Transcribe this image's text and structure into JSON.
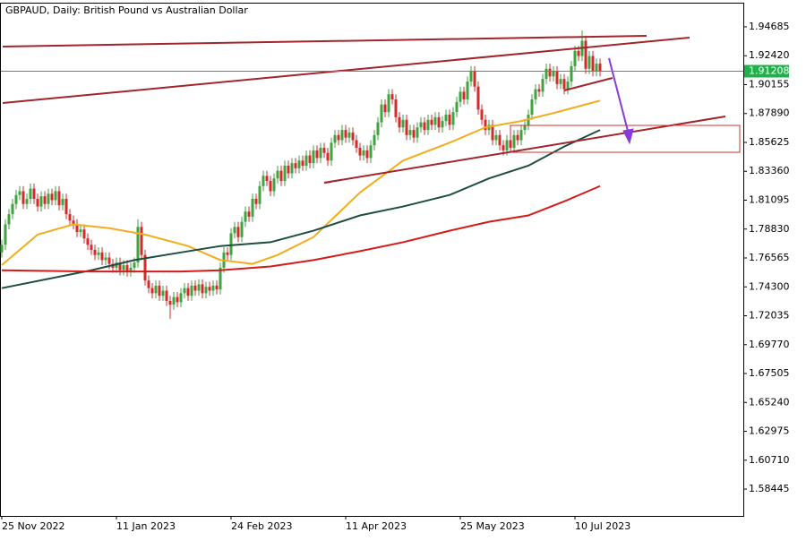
{
  "chart_data": {
    "type": "candlestick",
    "title": "GBPAUD, Daily:  British Pound vs Australian Dollar",
    "categories": [
      "25 Nov 2022",
      null,
      null,
      null,
      null,
      null,
      null,
      null,
      null,
      null,
      null,
      null,
      null,
      null,
      null,
      null,
      null,
      null,
      null,
      null,
      null,
      null,
      null,
      null,
      null,
      null,
      null,
      null,
      null,
      null,
      null,
      null,
      "11 Jan 2023",
      null,
      null,
      null,
      null,
      null,
      null,
      null,
      null,
      null,
      null,
      null,
      null,
      null,
      null,
      null,
      null,
      null,
      null,
      null,
      null,
      null,
      null,
      null,
      null,
      null,
      null,
      null,
      null,
      null,
      null,
      null,
      "24 Feb 2023",
      null,
      null,
      null,
      null,
      null,
      null,
      null,
      null,
      null,
      null,
      null,
      null,
      null,
      null,
      null,
      null,
      null,
      null,
      null,
      null,
      null,
      null,
      null,
      null,
      null,
      null,
      null,
      null,
      null,
      null,
      null,
      "11 Apr 2023",
      null,
      null,
      null,
      null,
      null,
      null,
      null,
      null,
      null,
      null,
      null,
      null,
      null,
      null,
      null,
      null,
      null,
      null,
      null,
      null,
      null,
      null,
      null,
      null,
      null,
      null,
      null,
      null,
      null,
      null,
      null,
      "25 May 2023",
      null,
      null,
      null,
      null,
      null,
      null,
      null,
      null,
      null,
      null,
      null,
      null,
      null,
      null,
      null,
      null,
      null,
      null,
      null,
      null,
      null,
      null,
      null,
      null,
      null,
      null,
      null,
      null,
      null,
      null,
      null,
      "10 Jul 2023",
      null,
      null,
      null,
      null,
      null,
      null,
      null
    ],
    "ohlc": [
      [
        1.77,
        1.78,
        1.766,
        1.776
      ],
      [
        1.776,
        1.796,
        1.772,
        1.792
      ],
      [
        1.792,
        1.804,
        1.788,
        1.8
      ],
      [
        1.8,
        1.812,
        1.796,
        1.808
      ],
      [
        1.808,
        1.819,
        1.804,
        1.815
      ],
      [
        1.815,
        1.822,
        1.811,
        1.818
      ],
      [
        1.818,
        1.822,
        1.804,
        1.808
      ],
      [
        1.808,
        1.816,
        1.804,
        1.812
      ],
      [
        1.812,
        1.824,
        1.808,
        1.82
      ],
      [
        1.82,
        1.824,
        1.808,
        1.812
      ],
      [
        1.812,
        1.816,
        1.802,
        1.806
      ],
      [
        1.806,
        1.818,
        1.802,
        1.814
      ],
      [
        1.814,
        1.818,
        1.804,
        1.808
      ],
      [
        1.808,
        1.82,
        1.804,
        1.816
      ],
      [
        1.816,
        1.82,
        1.807,
        1.811
      ],
      [
        1.811,
        1.822,
        1.807,
        1.818
      ],
      [
        1.818,
        1.822,
        1.803,
        1.807
      ],
      [
        1.807,
        1.816,
        1.803,
        1.812
      ],
      [
        1.812,
        1.816,
        1.796,
        1.8
      ],
      [
        1.8,
        1.804,
        1.791,
        1.795
      ],
      [
        1.795,
        1.799,
        1.788,
        1.792
      ],
      [
        1.792,
        1.796,
        1.782,
        1.786
      ],
      [
        1.786,
        1.792,
        1.782,
        1.788
      ],
      [
        1.788,
        1.792,
        1.777,
        1.781
      ],
      [
        1.781,
        1.785,
        1.772,
        1.776
      ],
      [
        1.776,
        1.78,
        1.768,
        1.772
      ],
      [
        1.772,
        1.776,
        1.764,
        1.768
      ],
      [
        1.768,
        1.774,
        1.764,
        1.77
      ],
      [
        1.77,
        1.774,
        1.76,
        1.764
      ],
      [
        1.764,
        1.77,
        1.76,
        1.766
      ],
      [
        1.766,
        1.77,
        1.757,
        1.761
      ],
      [
        1.761,
        1.765,
        1.754,
        1.758
      ],
      [
        1.758,
        1.766,
        1.754,
        1.762
      ],
      [
        1.762,
        1.766,
        1.752,
        1.756
      ],
      [
        1.756,
        1.764,
        1.752,
        1.76
      ],
      [
        1.76,
        1.764,
        1.751,
        1.755
      ],
      [
        1.755,
        1.762,
        1.751,
        1.758
      ],
      [
        1.758,
        1.766,
        1.754,
        1.762
      ],
      [
        1.762,
        1.796,
        1.758,
        1.79
      ],
      [
        1.79,
        1.794,
        1.764,
        1.768
      ],
      [
        1.768,
        1.772,
        1.744,
        1.748
      ],
      [
        1.748,
        1.752,
        1.738,
        1.742
      ],
      [
        1.742,
        1.746,
        1.734,
        1.738
      ],
      [
        1.738,
        1.748,
        1.734,
        1.744
      ],
      [
        1.744,
        1.748,
        1.732,
        1.736
      ],
      [
        1.736,
        1.744,
        1.732,
        1.74
      ],
      [
        1.74,
        1.744,
        1.728,
        1.732
      ],
      [
        1.732,
        1.736,
        1.718,
        1.729
      ],
      [
        1.729,
        1.739,
        1.725,
        1.735
      ],
      [
        1.735,
        1.739,
        1.727,
        1.731
      ],
      [
        1.731,
        1.742,
        1.727,
        1.738
      ],
      [
        1.738,
        1.746,
        1.734,
        1.742
      ],
      [
        1.742,
        1.746,
        1.732,
        1.736
      ],
      [
        1.736,
        1.748,
        1.732,
        1.744
      ],
      [
        1.744,
        1.748,
        1.736,
        1.74
      ],
      [
        1.74,
        1.749,
        1.736,
        1.745
      ],
      [
        1.745,
        1.749,
        1.734,
        1.738
      ],
      [
        1.738,
        1.747,
        1.734,
        1.743
      ],
      [
        1.743,
        1.747,
        1.736,
        1.74
      ],
      [
        1.74,
        1.748,
        1.736,
        1.744
      ],
      [
        1.744,
        1.748,
        1.737,
        1.741
      ],
      [
        1.741,
        1.762,
        1.737,
        1.758
      ],
      [
        1.758,
        1.774,
        1.754,
        1.77
      ],
      [
        1.77,
        1.774,
        1.764,
        1.768
      ],
      [
        1.768,
        1.789,
        1.764,
        1.785
      ],
      [
        1.785,
        1.794,
        1.781,
        1.79
      ],
      [
        1.79,
        1.794,
        1.778,
        1.782
      ],
      [
        1.782,
        1.798,
        1.778,
        1.794
      ],
      [
        1.794,
        1.806,
        1.79,
        1.802
      ],
      [
        1.802,
        1.806,
        1.794,
        1.798
      ],
      [
        1.798,
        1.816,
        1.794,
        1.812
      ],
      [
        1.812,
        1.816,
        1.804,
        1.808
      ],
      [
        1.808,
        1.826,
        1.804,
        1.822
      ],
      [
        1.822,
        1.834,
        1.818,
        1.83
      ],
      [
        1.83,
        1.834,
        1.822,
        1.826
      ],
      [
        1.826,
        1.83,
        1.814,
        1.818
      ],
      [
        1.818,
        1.832,
        1.814,
        1.828
      ],
      [
        1.828,
        1.838,
        1.824,
        1.834
      ],
      [
        1.834,
        1.838,
        1.822,
        1.826
      ],
      [
        1.826,
        1.842,
        1.822,
        1.838
      ],
      [
        1.838,
        1.842,
        1.828,
        1.832
      ],
      [
        1.832,
        1.844,
        1.828,
        1.84
      ],
      [
        1.84,
        1.844,
        1.832,
        1.836
      ],
      [
        1.836,
        1.846,
        1.832,
        1.842
      ],
      [
        1.842,
        1.846,
        1.834,
        1.838
      ],
      [
        1.838,
        1.85,
        1.834,
        1.846
      ],
      [
        1.846,
        1.85,
        1.836,
        1.84
      ],
      [
        1.84,
        1.854,
        1.836,
        1.85
      ],
      [
        1.85,
        1.854,
        1.84,
        1.844
      ],
      [
        1.844,
        1.856,
        1.84,
        1.852
      ],
      [
        1.852,
        1.856,
        1.844,
        1.848
      ],
      [
        1.848,
        1.852,
        1.838,
        1.842
      ],
      [
        1.842,
        1.86,
        1.838,
        1.856
      ],
      [
        1.856,
        1.866,
        1.852,
        1.862
      ],
      [
        1.862,
        1.866,
        1.854,
        1.858
      ],
      [
        1.858,
        1.87,
        1.854,
        1.866
      ],
      [
        1.866,
        1.87,
        1.856,
        1.86
      ],
      [
        1.86,
        1.868,
        1.856,
        1.864
      ],
      [
        1.864,
        1.868,
        1.854,
        1.858
      ],
      [
        1.858,
        1.862,
        1.848,
        1.852
      ],
      [
        1.852,
        1.856,
        1.842,
        1.846
      ],
      [
        1.846,
        1.854,
        1.842,
        1.85
      ],
      [
        1.85,
        1.854,
        1.84,
        1.844
      ],
      [
        1.844,
        1.858,
        1.84,
        1.854
      ],
      [
        1.854,
        1.866,
        1.85,
        1.862
      ],
      [
        1.862,
        1.876,
        1.858,
        1.872
      ],
      [
        1.872,
        1.89,
        1.868,
        1.886
      ],
      [
        1.886,
        1.89,
        1.876,
        1.88
      ],
      [
        1.88,
        1.898,
        1.876,
        1.894
      ],
      [
        1.894,
        1.898,
        1.886,
        1.89
      ],
      [
        1.89,
        1.894,
        1.872,
        1.876
      ],
      [
        1.876,
        1.88,
        1.864,
        1.868
      ],
      [
        1.868,
        1.878,
        1.864,
        1.874
      ],
      [
        1.874,
        1.878,
        1.858,
        1.862
      ],
      [
        1.862,
        1.87,
        1.858,
        1.866
      ],
      [
        1.866,
        1.87,
        1.856,
        1.86
      ],
      [
        1.86,
        1.872,
        1.856,
        1.868
      ],
      [
        1.868,
        1.876,
        1.864,
        1.872
      ],
      [
        1.872,
        1.876,
        1.862,
        1.866
      ],
      [
        1.866,
        1.878,
        1.862,
        1.874
      ],
      [
        1.874,
        1.878,
        1.866,
        1.87
      ],
      [
        1.87,
        1.88,
        1.866,
        1.876
      ],
      [
        1.876,
        1.88,
        1.864,
        1.868
      ],
      [
        1.868,
        1.877,
        1.864,
        1.873
      ],
      [
        1.873,
        1.882,
        1.869,
        1.878
      ],
      [
        1.878,
        1.882,
        1.866,
        1.87
      ],
      [
        1.87,
        1.884,
        1.866,
        1.88
      ],
      [
        1.88,
        1.892,
        1.876,
        1.888
      ],
      [
        1.888,
        1.9,
        1.884,
        1.896
      ],
      [
        1.896,
        1.9,
        1.886,
        1.89
      ],
      [
        1.89,
        1.908,
        1.886,
        1.904
      ],
      [
        1.904,
        1.916,
        1.9,
        1.912
      ],
      [
        1.912,
        1.916,
        1.896,
        1.9
      ],
      [
        1.9,
        1.904,
        1.878,
        1.882
      ],
      [
        1.882,
        1.886,
        1.87,
        1.874
      ],
      [
        1.874,
        1.878,
        1.862,
        1.866
      ],
      [
        1.866,
        1.874,
        1.862,
        1.87
      ],
      [
        1.87,
        1.874,
        1.854,
        1.858
      ],
      [
        1.858,
        1.866,
        1.854,
        1.862
      ],
      [
        1.862,
        1.866,
        1.85,
        1.854
      ],
      [
        1.854,
        1.858,
        1.846,
        1.85
      ],
      [
        1.85,
        1.862,
        1.846,
        1.858
      ],
      [
        1.858,
        1.862,
        1.848,
        1.852
      ],
      [
        1.852,
        1.866,
        1.848,
        1.862
      ],
      [
        1.862,
        1.866,
        1.854,
        1.858
      ],
      [
        1.858,
        1.87,
        1.854,
        1.866
      ],
      [
        1.866,
        1.874,
        1.862,
        1.87
      ],
      [
        1.87,
        1.882,
        1.866,
        1.878
      ],
      [
        1.878,
        1.894,
        1.874,
        1.89
      ],
      [
        1.89,
        1.902,
        1.886,
        1.898
      ],
      [
        1.898,
        1.902,
        1.892,
        1.896
      ],
      [
        1.896,
        1.91,
        1.892,
        1.906
      ],
      [
        1.906,
        1.918,
        1.902,
        1.914
      ],
      [
        1.914,
        1.918,
        1.904,
        1.908
      ],
      [
        1.908,
        1.916,
        1.904,
        1.912
      ],
      [
        1.912,
        1.916,
        1.898,
        1.902
      ],
      [
        1.902,
        1.91,
        1.898,
        1.906
      ],
      [
        1.906,
        1.91,
        1.894,
        1.898
      ],
      [
        1.898,
        1.908,
        1.894,
        1.904
      ],
      [
        1.904,
        1.92,
        1.9,
        1.916
      ],
      [
        1.916,
        1.932,
        1.912,
        1.928
      ],
      [
        1.928,
        1.932,
        1.92,
        1.924
      ],
      [
        1.924,
        1.944,
        1.92,
        1.936
      ],
      [
        1.936,
        1.94,
        1.91,
        1.914
      ],
      [
        1.914,
        1.928,
        1.91,
        1.924
      ],
      [
        1.924,
        1.928,
        1.908,
        1.912
      ],
      [
        1.912,
        1.922,
        1.908,
        1.918
      ],
      [
        1.918,
        1.922,
        1.908,
        1.912
      ]
    ],
    "up_color": "#3fa33f",
    "down_color": "#d42a2a",
    "moving_averages": [
      {
        "color": "#f2ad1c",
        "x": [
          0,
          10,
          20,
          30,
          40,
          52,
          61,
          70,
          77,
          87,
          100,
          112,
          125,
          135,
          145,
          155,
          167
        ],
        "values": [
          1.76,
          1.784,
          1.792,
          1.789,
          1.784,
          1.775,
          1.764,
          1.761,
          1.768,
          1.782,
          1.817,
          1.842,
          1.856,
          1.868,
          1.873,
          1.88,
          1.889
        ]
      },
      {
        "color": "#1d4e3f",
        "x": [
          0,
          25,
          37,
          50,
          61,
          75,
          87,
          100,
          112,
          125,
          136,
          147,
          157,
          167
        ],
        "values": [
          1.742,
          1.756,
          1.764,
          1.77,
          1.775,
          1.778,
          1.787,
          1.799,
          1.806,
          1.815,
          1.828,
          1.838,
          1.853,
          1.866
        ]
      },
      {
        "color": "#d51a1a",
        "x": [
          0,
          25,
          37,
          50,
          61,
          75,
          87,
          100,
          112,
          125,
          136,
          147,
          157,
          167
        ],
        "values": [
          1.756,
          1.755,
          1.755,
          1.755,
          1.756,
          1.759,
          1.764,
          1.771,
          1.778,
          1.787,
          1.794,
          1.799,
          1.81,
          1.822
        ]
      }
    ],
    "last_price": 1.91208,
    "last_price_color": "#22b04b",
    "ylim": [
      1.5634,
      1.9658
    ],
    "yticks": [
      1.94685,
      {
        "value": 1.9242,
        "label": "1.92420"
      },
      1.90155,
      {
        "value": 1.8789,
        "label": "1.87890"
      },
      1.85625,
      {
        "value": 1.8336,
        "label": "1.83360"
      },
      1.81095,
      {
        "value": 1.7883,
        "label": "1.78830"
      },
      1.76565,
      {
        "value": 1.743,
        "label": "1.74300"
      },
      1.72035,
      {
        "value": 1.6977,
        "label": "1.69770"
      },
      1.67505,
      {
        "value": 1.6524,
        "label": "1.65240"
      },
      1.62975,
      {
        "value": 1.6071,
        "label": "1.60710"
      },
      1.58445
    ]
  }
}
